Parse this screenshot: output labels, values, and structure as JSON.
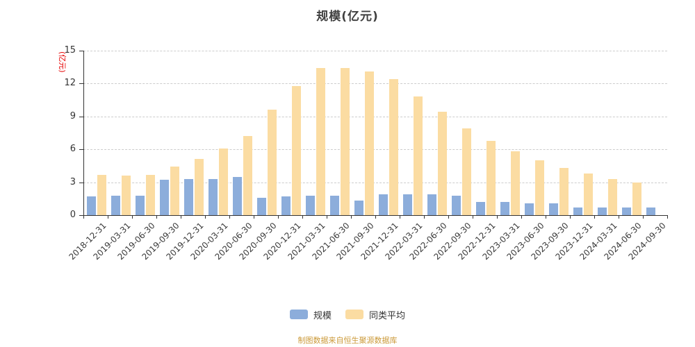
{
  "title": "规模(亿元)",
  "y_axis": {
    "unit_label": "(亿元)",
    "unit_color": "#e60000",
    "ticks": [
      0,
      3,
      6,
      9,
      12,
      15
    ]
  },
  "legend": [
    {
      "label": "规模",
      "color": "#8caddb"
    },
    {
      "label": "同类平均",
      "color": "#fbdca2"
    }
  ],
  "footer": {
    "text": "制图数据来自恒生聚源数据库",
    "color": "#cb9a3a"
  },
  "chart_data": {
    "type": "bar",
    "title": "规模(亿元)",
    "ylabel": "(亿元)",
    "ylim": [
      0,
      15
    ],
    "y_ticks": [
      0,
      3,
      6,
      9,
      12,
      15
    ],
    "grid": "horizontal-dashed",
    "legend_position": "bottom-center",
    "x_label_rotation": -45,
    "categories": [
      "2018-12-31",
      "2019-03-31",
      "2019-06-30",
      "2019-09-30",
      "2019-12-31",
      "2020-03-31",
      "2020-06-30",
      "2020-09-30",
      "2020-12-31",
      "2021-03-31",
      "2021-06-30",
      "2021-09-30",
      "2021-12-31",
      "2022-03-31",
      "2022-06-30",
      "2022-09-30",
      "2022-12-31",
      "2023-03-31",
      "2023-06-30",
      "2023-09-30",
      "2023-12-31",
      "2024-03-31",
      "2024-06-30",
      "2024-09-30"
    ],
    "series": [
      {
        "name": "规模",
        "color": "#8cad: db",
        "values": [
          1.7,
          1.8,
          1.8,
          3.2,
          3.3,
          3.3,
          3.5,
          1.6,
          1.7,
          1.8,
          1.8,
          1.3,
          1.9,
          1.9,
          1.9,
          1.8,
          1.2,
          1.2,
          1.1,
          1.1,
          0.7,
          0.7,
          0.7,
          0.7
        ]
      },
      {
        "name": "同类平均",
        "color": "#fbdca2",
        "values": [
          3.7,
          3.6,
          3.7,
          4.4,
          5.1,
          6.1,
          7.2,
          9.6,
          11.8,
          13.4,
          13.4,
          13.1,
          12.4,
          10.8,
          9.4,
          7.9,
          6.8,
          5.8,
          5.0,
          4.3,
          3.8,
          3.3,
          3.0,
          null
        ]
      }
    ]
  }
}
